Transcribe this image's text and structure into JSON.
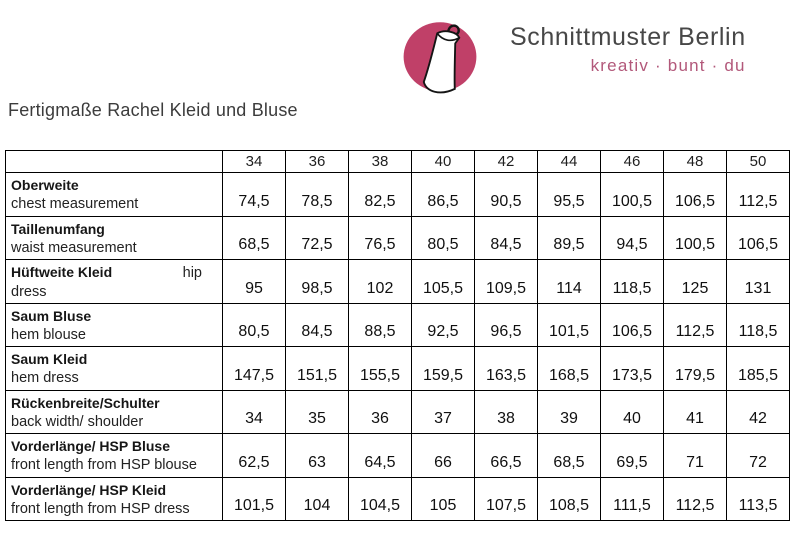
{
  "logo": {
    "brand": "Schnittmuster Berlin",
    "tagline": "kreativ · bunt · du",
    "circle_color": "#c04068",
    "tagline_color": "#b2587a",
    "icon": "dress-on-hanger-icon"
  },
  "page_title": "Fertigmaße Rachel Kleid und Bluse",
  "table": {
    "sizes": [
      "34",
      "36",
      "38",
      "40",
      "42",
      "44",
      "46",
      "48",
      "50"
    ],
    "rows": [
      {
        "label_de": "Oberweite",
        "label_en": "chest measurement",
        "values": [
          "74,5",
          "78,5",
          "82,5",
          "86,5",
          "90,5",
          "95,5",
          "100,5",
          "106,5",
          "112,5"
        ]
      },
      {
        "label_de": "Taillenumfang",
        "label_en": "waist measurement",
        "values": [
          "68,5",
          "72,5",
          "76,5",
          "80,5",
          "84,5",
          "89,5",
          "94,5",
          "100,5",
          "106,5"
        ]
      },
      {
        "label_de": "Hüftweite Kleid",
        "label_en_inline": "hip",
        "label_en": "dress",
        "values": [
          "95",
          "98,5",
          "102",
          "105,5",
          "109,5",
          "114",
          "118,5",
          "125",
          "131"
        ]
      },
      {
        "label_de": "Saum Bluse",
        "label_en": "hem blouse",
        "values": [
          "80,5",
          "84,5",
          "88,5",
          "92,5",
          "96,5",
          "101,5",
          "106,5",
          "112,5",
          "118,5"
        ]
      },
      {
        "label_de": "Saum Kleid",
        "label_en": "hem dress",
        "values": [
          "147,5",
          "151,5",
          "155,5",
          "159,5",
          "163,5",
          "168,5",
          "173,5",
          "179,5",
          "185,5"
        ]
      },
      {
        "label_de": "Rückenbreite/Schulter",
        "label_en": "back width/ shoulder",
        "values": [
          "34",
          "35",
          "36",
          "37",
          "38",
          "39",
          "40",
          "41",
          "42"
        ]
      },
      {
        "label_de": "Vorderlänge/ HSP Bluse",
        "label_en": "front length from HSP blouse",
        "values": [
          "62,5",
          "63",
          "64,5",
          "66",
          "66,5",
          "68,5",
          "69,5",
          "71",
          "72"
        ]
      },
      {
        "label_de": "Vorderlänge/ HSP Kleid",
        "label_en": "front length from HSP dress",
        "values": [
          "101,5",
          "104",
          "104,5",
          "105",
          "107,5",
          "108,5",
          "111,5",
          "112,5",
          "113,5"
        ]
      }
    ]
  }
}
